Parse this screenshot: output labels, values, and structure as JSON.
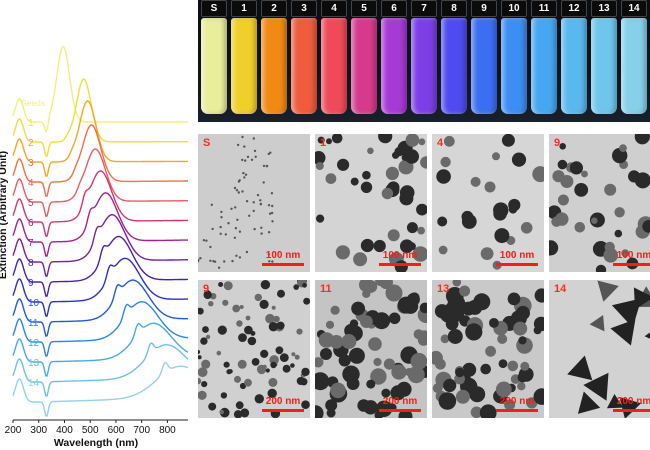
{
  "chart_data": {
    "type": "line",
    "xlabel": "Wavelength (nm)",
    "ylabel": "Extinction (Arbitrary Unit)",
    "xlim": [
      200,
      880
    ],
    "xticks": [
      200,
      300,
      400,
      500,
      600,
      700,
      800
    ],
    "grid": false,
    "legend": "none",
    "series": [
      {
        "name": "Seeds",
        "color": "#f2ef7a",
        "peak": 395,
        "width": 35,
        "amp": 1.8,
        "sharp": 35
      },
      {
        "name": "1",
        "color": "#f4dc3a",
        "peak": 475,
        "width": 40,
        "amp": 1.5,
        "sharp": 18
      },
      {
        "name": "2",
        "color": "#f6a81e",
        "peak": 490,
        "width": 45,
        "amp": 1.45,
        "sharp": 15
      },
      {
        "name": "3",
        "color": "#f36f45",
        "peak": 505,
        "width": 50,
        "amp": 1.35,
        "sharp": 12
      },
      {
        "name": "4",
        "color": "#ec5a66",
        "peak": 520,
        "width": 55,
        "amp": 1.25,
        "sharp": 10
      },
      {
        "name": "5",
        "color": "#d4356f",
        "peak": 540,
        "width": 60,
        "amp": 1.2,
        "sharp": 9
      },
      {
        "name": "6",
        "color": "#a8208a",
        "peak": 560,
        "width": 65,
        "amp": 1.15,
        "sharp": 8
      },
      {
        "name": "7",
        "color": "#7c1fa0",
        "peak": 585,
        "width": 70,
        "amp": 1.1,
        "sharp": 8
      },
      {
        "name": "8",
        "color": "#4a21b8",
        "peak": 610,
        "width": 75,
        "amp": 1.05,
        "sharp": 8
      },
      {
        "name": "9",
        "color": "#2b2fd0",
        "peak": 635,
        "width": 80,
        "amp": 1.0,
        "sharp": 8
      },
      {
        "name": "10",
        "color": "#1f5ae0",
        "peak": 665,
        "width": 85,
        "amp": 0.95,
        "sharp": 8
      },
      {
        "name": "11",
        "color": "#2a86e8",
        "peak": 700,
        "width": 90,
        "amp": 0.9,
        "sharp": 8
      },
      {
        "name": "12",
        "color": "#4aa8ec",
        "peak": 745,
        "width": 100,
        "amp": 0.85,
        "sharp": 8
      },
      {
        "name": "13",
        "color": "#6cc0f0",
        "peak": 795,
        "width": 110,
        "amp": 0.8,
        "sharp": 8
      },
      {
        "name": "14",
        "color": "#8ed2f4",
        "peak": 850,
        "width": 125,
        "amp": 0.75,
        "sharp": 8
      }
    ]
  },
  "vials": {
    "labels": [
      "S",
      "1",
      "2",
      "3",
      "4",
      "5",
      "6",
      "7",
      "8",
      "9",
      "10",
      "11",
      "12",
      "13",
      "14"
    ],
    "colors": [
      "#e8ee9a",
      "#f1cf2a",
      "#f08a12",
      "#ef5b3c",
      "#ef4a5a",
      "#d63a8c",
      "#a63ad4",
      "#7b3fe6",
      "#4e4cf0",
      "#3c6ef2",
      "#3c8ef4",
      "#46a6f2",
      "#59b8ee",
      "#6ec6ec",
      "#86d0ea"
    ]
  },
  "tem": [
    {
      "label": "S",
      "scale": "100 nm",
      "bg": "#cdcdcd",
      "kind": "seeds"
    },
    {
      "label": "1",
      "scale": "100 nm",
      "bg": "#d4d4d4",
      "kind": "small"
    },
    {
      "label": "4",
      "scale": "100 nm",
      "bg": "#d6d6d6",
      "kind": "sparse"
    },
    {
      "label": "9",
      "scale": "100 nm",
      "bg": "#cfcfcf",
      "kind": "medium"
    },
    {
      "label": "9",
      "scale": "200 nm",
      "bg": "#d0d0d0",
      "kind": "dense-small"
    },
    {
      "label": "11",
      "scale": "200 nm",
      "bg": "#c4c4c4",
      "kind": "dense"
    },
    {
      "label": "13",
      "scale": "200 nm",
      "bg": "#c9c9c9",
      "kind": "dense"
    },
    {
      "label": "14",
      "scale": "200 nm",
      "bg": "#d2d2d2",
      "kind": "triangles"
    }
  ]
}
